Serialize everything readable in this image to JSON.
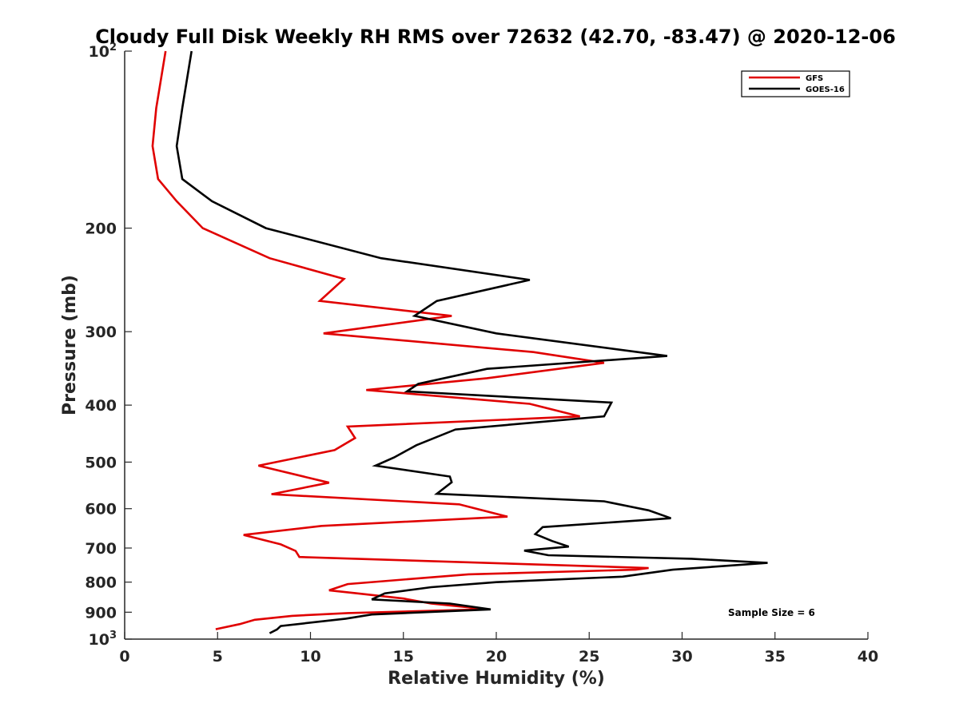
{
  "chart_data": {
    "type": "line",
    "title": "Cloudy Full Disk Weekly RH RMS over 72632 (42.70, -83.47) @ 2020-12-06",
    "xlabel": "Relative Humidity (%)",
    "ylabel": "Pressure (mb)",
    "xlim": [
      0,
      40
    ],
    "ylim": [
      100,
      1000
    ],
    "y_scale": "log",
    "y_reversed": true,
    "grid": false,
    "legend_position": "top-right",
    "x_ticks": [
      "0",
      "5",
      "10",
      "15",
      "20",
      "25",
      "30",
      "35",
      "40"
    ],
    "y_ticks": [
      {
        "base": "10",
        "sup": "2",
        "value": 100
      },
      {
        "base": "200",
        "sup": "",
        "value": 200
      },
      {
        "base": "300",
        "sup": "",
        "value": 300
      },
      {
        "base": "400",
        "sup": "",
        "value": 400
      },
      {
        "base": "500",
        "sup": "",
        "value": 500
      },
      {
        "base": "600",
        "sup": "",
        "value": 600
      },
      {
        "base": "700",
        "sup": "",
        "value": 700
      },
      {
        "base": "800",
        "sup": "",
        "value": 800
      },
      {
        "base": "900",
        "sup": "",
        "value": 900
      },
      {
        "base": "10",
        "sup": "3",
        "value": 1000
      }
    ],
    "series": [
      {
        "name": "GFS",
        "color": "#e00000",
        "points": [
          [
            2.2,
            100
          ],
          [
            1.7,
            125
          ],
          [
            1.5,
            145
          ],
          [
            1.8,
            165
          ],
          [
            2.8,
            180
          ],
          [
            4.2,
            200
          ],
          [
            7.8,
            225
          ],
          [
            11.8,
            244
          ],
          [
            10.5,
            266
          ],
          [
            17.6,
            282
          ],
          [
            10.7,
            302
          ],
          [
            22.0,
            325
          ],
          [
            25.8,
            339
          ],
          [
            19.5,
            360
          ],
          [
            13.0,
            377
          ],
          [
            21.8,
            398
          ],
          [
            24.5,
            418
          ],
          [
            12.0,
            435
          ],
          [
            12.4,
            455
          ],
          [
            11.3,
            477
          ],
          [
            7.2,
            507
          ],
          [
            11.0,
            542
          ],
          [
            7.9,
            567
          ],
          [
            18.0,
            590
          ],
          [
            20.6,
            619
          ],
          [
            10.6,
            642
          ],
          [
            6.4,
            665
          ],
          [
            8.4,
            690
          ],
          [
            9.2,
            708
          ],
          [
            9.4,
            725
          ],
          [
            28.2,
            757
          ],
          [
            27.5,
            762
          ],
          [
            18.5,
            776
          ],
          [
            12.0,
            806
          ],
          [
            11.0,
            826
          ],
          [
            12.5,
            836
          ],
          [
            15.0,
            853
          ],
          [
            16.5,
            870
          ],
          [
            18.5,
            883
          ],
          [
            19.2,
            890
          ],
          [
            12.0,
            903
          ],
          [
            9.0,
            913
          ],
          [
            7.0,
            927
          ],
          [
            6.2,
            943
          ],
          [
            4.9,
            962
          ]
        ]
      },
      {
        "name": "GOES-16",
        "color": "#000000",
        "points": [
          [
            3.6,
            100
          ],
          [
            3.1,
            125
          ],
          [
            2.8,
            145
          ],
          [
            3.1,
            165
          ],
          [
            4.7,
            180
          ],
          [
            7.6,
            200
          ],
          [
            13.8,
            225
          ],
          [
            21.8,
            245
          ],
          [
            16.8,
            266
          ],
          [
            15.6,
            282
          ],
          [
            20.0,
            302
          ],
          [
            29.2,
            330
          ],
          [
            19.5,
            347
          ],
          [
            15.8,
            368
          ],
          [
            15.2,
            379
          ],
          [
            26.2,
            396
          ],
          [
            25.8,
            418
          ],
          [
            17.8,
            440
          ],
          [
            15.7,
            468
          ],
          [
            14.5,
            491
          ],
          [
            13.5,
            507
          ],
          [
            17.5,
            529
          ],
          [
            17.6,
            541
          ],
          [
            16.8,
            566
          ],
          [
            25.8,
            583
          ],
          [
            28.2,
            604
          ],
          [
            29.4,
            623
          ],
          [
            22.5,
            645
          ],
          [
            22.1,
            663
          ],
          [
            23.0,
            681
          ],
          [
            23.9,
            696
          ],
          [
            21.5,
            707
          ],
          [
            22.8,
            720
          ],
          [
            30.5,
            730
          ],
          [
            34.6,
            742
          ],
          [
            29.5,
            762
          ],
          [
            26.8,
            783
          ],
          [
            20.0,
            800
          ],
          [
            16.5,
            816
          ],
          [
            14.0,
            836
          ],
          [
            13.3,
            856
          ],
          [
            17.5,
            870
          ],
          [
            19.7,
            890
          ],
          [
            13.3,
            908
          ],
          [
            11.9,
            923
          ],
          [
            8.4,
            950
          ],
          [
            8.2,
            963
          ],
          [
            7.8,
            977
          ]
        ]
      }
    ],
    "legend": [
      {
        "label": "GFS",
        "color": "#e00000"
      },
      {
        "label": "GOES-16",
        "color": "#000000"
      }
    ],
    "annotation": "Sample Size = 6"
  }
}
